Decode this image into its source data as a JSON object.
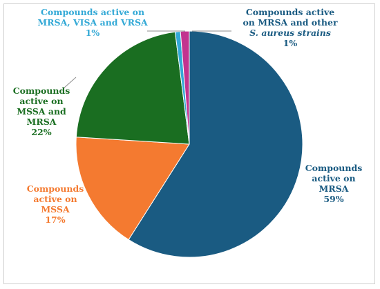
{
  "chart_data": {
    "type": "pie",
    "title": "",
    "slices": [
      {
        "label_lines": [
          "Compounds",
          "active on",
          "MRSA",
          "59%"
        ],
        "value": 59,
        "color": "#1a5b82"
      },
      {
        "label_lines": [
          "Compounds",
          "active on",
          "MSSA",
          "17%"
        ],
        "value": 17,
        "color": "#f47a30"
      },
      {
        "label_lines": [
          "Compounds",
          "active on",
          "MSSA and",
          "MRSA",
          "22%"
        ],
        "value": 22,
        "color": "#1a6e21"
      },
      {
        "label_lines": [
          "Compounds active on",
          "MRSA, VISA and VRSA",
          "1%"
        ],
        "value": 0.75,
        "color": "#33a9d6"
      },
      {
        "label_lines": [
          "Compounds active",
          "on MRSA and other",
          "S. aureus strains",
          "1%"
        ],
        "value": 1.25,
        "color": "#c2338f"
      }
    ],
    "start_angle_deg": 0,
    "direction": "clockwise",
    "legend": "none"
  }
}
